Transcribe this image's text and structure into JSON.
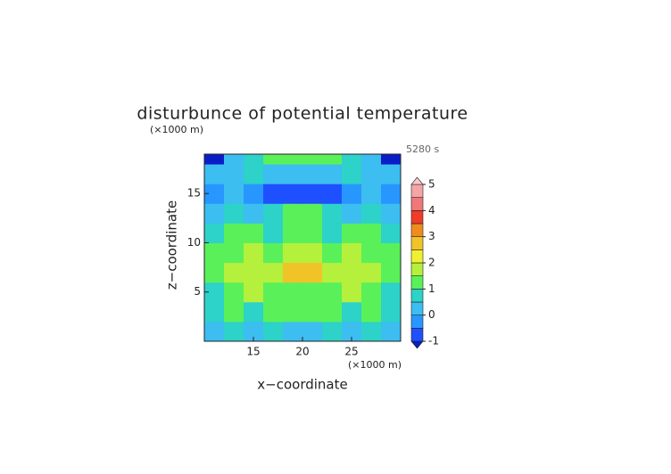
{
  "chart_data": {
    "type": "contour",
    "title": "disturbunce of potential temperature",
    "y_unit_label": "(×1000 m)",
    "x_unit_label": "(×1000 m)",
    "time_label": "5280 s",
    "x_label": "x−coordinate",
    "y_label": "z−coordinate",
    "xlim": [
      10,
      30
    ],
    "ylim": [
      0,
      19
    ],
    "xticks": [
      15,
      20,
      25
    ],
    "yticks": [
      5,
      10,
      15
    ],
    "x": [
      11,
      13,
      15,
      17,
      19,
      21,
      23,
      25,
      27,
      29
    ],
    "y": [
      1,
      3,
      5,
      7,
      9,
      11,
      13,
      15,
      17,
      19
    ],
    "z": [
      [
        0.3,
        0.6,
        0.3,
        0.6,
        0.3,
        0.3,
        0.6,
        0.3,
        0.6,
        0.3
      ],
      [
        0.8,
        1.2,
        0.8,
        1.3,
        1.3,
        1.3,
        1.3,
        0.8,
        1.2,
        0.8
      ],
      [
        0.8,
        1.2,
        1.6,
        1.3,
        1.2,
        1.2,
        1.3,
        1.6,
        1.2,
        0.8
      ],
      [
        1.3,
        1.8,
        1.6,
        1.8,
        2.8,
        2.8,
        1.8,
        1.6,
        1.8,
        1.3
      ],
      [
        1.2,
        1.3,
        1.8,
        1.3,
        1.8,
        1.8,
        1.3,
        1.8,
        1.3,
        1.2
      ],
      [
        0.8,
        1.2,
        1.3,
        0.8,
        1.2,
        1.2,
        0.8,
        1.3,
        1.2,
        0.8
      ],
      [
        0.3,
        0.6,
        0.3,
        0.6,
        1.2,
        1.2,
        0.6,
        0.3,
        0.6,
        0.3
      ],
      [
        -0.3,
        0.3,
        -0.3,
        -0.8,
        -0.8,
        -0.8,
        -0.8,
        -0.3,
        0.3,
        -0.3
      ],
      [
        0.3,
        0.3,
        0.6,
        0.3,
        0.3,
        0.3,
        0.3,
        0.6,
        0.3,
        0.3
      ],
      [
        -1.2,
        0.3,
        0.6,
        1.2,
        1.2,
        1.2,
        1.2,
        0.6,
        0.3,
        -1.2
      ]
    ],
    "colorbar": {
      "levels": [
        -1,
        -0.5,
        0,
        0.5,
        1,
        1.5,
        2,
        2.5,
        3,
        3.5,
        4,
        4.5,
        5
      ],
      "colors": [
        "#0a1ec8",
        "#1e50ff",
        "#2896ff",
        "#3cbef0",
        "#2dd2c8",
        "#5af05a",
        "#b4f03c",
        "#f0f032",
        "#f0c328",
        "#f08c1e",
        "#f03c28",
        "#f07878",
        "#f5a5a5",
        "#fac8c8"
      ],
      "ticks": [
        -1,
        0,
        1,
        2,
        3,
        4,
        5
      ]
    }
  }
}
